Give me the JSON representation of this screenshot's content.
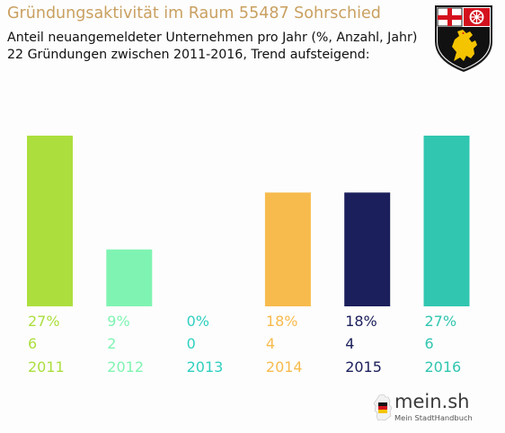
{
  "header": {
    "title": "Gründungsaktivität im Raum 55487 Sohrschied",
    "subtitle_line1": "Anteil neuangemeldeter Unternehmen pro Jahr (%, Anzahl, Jahr)",
    "subtitle_line2": "22 Gründungen zwischen 2011-2016, Trend aufsteigend:"
  },
  "branding": {
    "coat_of_arms_icon": "rhineland-palatinate-coat-of-arms-icon",
    "logo_text": "mein.sh",
    "logo_tagline": "Mein StadtHandbuch",
    "logo_icon": "germany-map-icon"
  },
  "chart_data": {
    "type": "bar",
    "categories": [
      "2011",
      "2012",
      "2013",
      "2014",
      "2015",
      "2016"
    ],
    "percent_labels": [
      "27%",
      "9%",
      "0%",
      "18%",
      "18%",
      "27%"
    ],
    "count_labels": [
      "6",
      "2",
      "0",
      "4",
      "4",
      "6"
    ],
    "values": [
      27,
      9,
      0,
      18,
      18,
      27
    ],
    "colors": [
      "#acdf3e",
      "#7ff4b2",
      "#2fd0c0",
      "#f7bb4d",
      "#1b1f5b",
      "#31c6b0"
    ],
    "title": "Gründungsaktivität im Raum 55487 Sohrschied",
    "ylim": [
      0,
      27
    ],
    "grid": false,
    "legend": "none"
  }
}
